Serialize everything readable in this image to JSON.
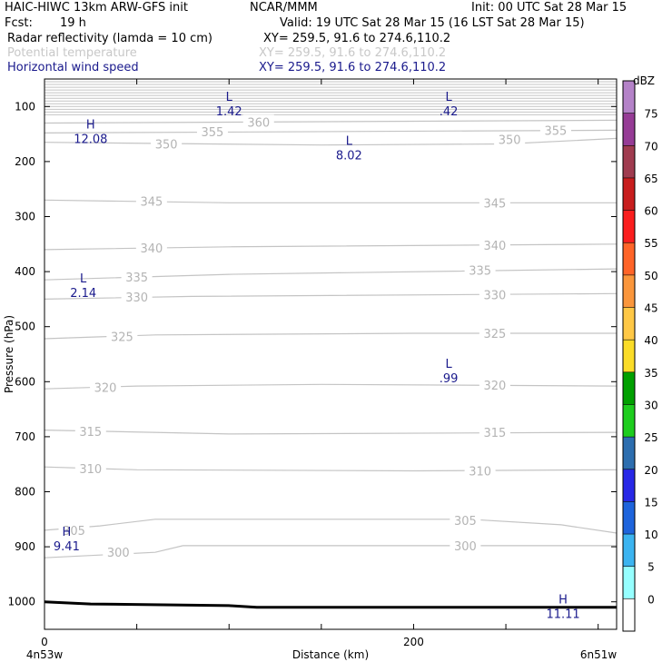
{
  "header": {
    "model": "HAIC-HIWC 13km ARW-GFS init",
    "org": "NCAR/MMM",
    "init": "Init: 00 UTC Sat 28 Mar 15",
    "fcst_label": "Fcst:",
    "fcst_value": "19 h",
    "valid": "Valid: 19 UTC Sat 28 Mar 15 (16 LST Sat 28 Mar 15)",
    "fields": [
      {
        "name": "Radar reflectivity (lamda = 10 cm)",
        "xy": "XY= 259.5, 91.6 to 274.6,110.2"
      },
      {
        "name": "Potential temperature",
        "xy": "XY= 259.5, 91.6 to 274.6,110.2"
      },
      {
        "name": "Horizontal wind speed",
        "xy": "XY= 259.5, 91.6 to 274.6,110.2"
      }
    ]
  },
  "chart_data": {
    "type": "line",
    "xlabel": "Distance (km)",
    "ylabel": "Pressure (hPa)",
    "x_tick_labels": [
      "0",
      "200"
    ],
    "x_ticks": [
      0,
      50,
      100,
      150,
      200,
      250,
      300
    ],
    "x_range": [
      0,
      310
    ],
    "y_ticks": [
      100,
      200,
      300,
      400,
      500,
      600,
      700,
      800,
      900,
      1000
    ],
    "y_range": [
      50,
      1050
    ],
    "left_endpoint": "4n53w",
    "right_endpoint": "6n51w",
    "isentropes": [
      {
        "label": "300",
        "points": [
          [
            0,
            920
          ],
          [
            60,
            910
          ],
          [
            75,
            898
          ],
          [
            310,
            898
          ]
        ]
      },
      {
        "label": "305",
        "points": [
          [
            0,
            870
          ],
          [
            30,
            862
          ],
          [
            60,
            850
          ],
          [
            230,
            850
          ],
          [
            280,
            860
          ],
          [
            310,
            875
          ]
        ]
      },
      {
        "label": "310",
        "points": [
          [
            0,
            755
          ],
          [
            50,
            760
          ],
          [
            200,
            762
          ],
          [
            310,
            760
          ]
        ]
      },
      {
        "label": "315",
        "points": [
          [
            0,
            688
          ],
          [
            100,
            695
          ],
          [
            310,
            692
          ]
        ]
      },
      {
        "label": "320",
        "points": [
          [
            0,
            613
          ],
          [
            50,
            608
          ],
          [
            150,
            605
          ],
          [
            310,
            608
          ]
        ]
      },
      {
        "label": "325",
        "points": [
          [
            0,
            522
          ],
          [
            60,
            515
          ],
          [
            200,
            512
          ],
          [
            310,
            512
          ]
        ]
      },
      {
        "label": "330",
        "points": [
          [
            0,
            450
          ],
          [
            80,
            445
          ],
          [
            310,
            440
          ]
        ]
      },
      {
        "label": "335",
        "points": [
          [
            0,
            415
          ],
          [
            100,
            405
          ],
          [
            310,
            395
          ]
        ]
      },
      {
        "label": "340",
        "points": [
          [
            0,
            360
          ],
          [
            100,
            355
          ],
          [
            310,
            350
          ]
        ]
      },
      {
        "label": "345",
        "points": [
          [
            0,
            270
          ],
          [
            100,
            275
          ],
          [
            310,
            275
          ]
        ]
      },
      {
        "label": "350",
        "points": [
          [
            0,
            165
          ],
          [
            150,
            170
          ],
          [
            250,
            168
          ],
          [
            310,
            158
          ]
        ]
      },
      {
        "label": "355",
        "points": [
          [
            0,
            148
          ],
          [
            310,
            143
          ]
        ]
      },
      {
        "label": "360",
        "points": [
          [
            0,
            130
          ],
          [
            310,
            125
          ]
        ]
      }
    ],
    "isentrope_labels": [
      {
        "text": "300",
        "x": 40,
        "p": 910
      },
      {
        "text": "305",
        "x": 16,
        "p": 870
      },
      {
        "text": "310",
        "x": 25,
        "p": 758
      },
      {
        "text": "315",
        "x": 25,
        "p": 690
      },
      {
        "text": "320",
        "x": 33,
        "p": 610
      },
      {
        "text": "325",
        "x": 42,
        "p": 518
      },
      {
        "text": "330",
        "x": 50,
        "p": 446
      },
      {
        "text": "335",
        "x": 50,
        "p": 410
      },
      {
        "text": "340",
        "x": 58,
        "p": 357
      },
      {
        "text": "345",
        "x": 58,
        "p": 272
      },
      {
        "text": "350",
        "x": 66,
        "p": 168
      },
      {
        "text": "355",
        "x": 91,
        "p": 146
      },
      {
        "text": "360",
        "x": 116,
        "p": 128
      },
      {
        "text": "300",
        "x": 228,
        "p": 898
      },
      {
        "text": "305",
        "x": 228,
        "p": 852
      },
      {
        "text": "310",
        "x": 236,
        "p": 762
      },
      {
        "text": "315",
        "x": 244,
        "p": 692
      },
      {
        "text": "320",
        "x": 244,
        "p": 606
      },
      {
        "text": "325",
        "x": 244,
        "p": 512
      },
      {
        "text": "330",
        "x": 244,
        "p": 442
      },
      {
        "text": "335",
        "x": 236,
        "p": 397
      },
      {
        "text": "340",
        "x": 244,
        "p": 352
      },
      {
        "text": "345",
        "x": 244,
        "p": 275
      },
      {
        "text": "350",
        "x": 252,
        "p": 160
      },
      {
        "text": "355",
        "x": 277,
        "p": 143
      }
    ],
    "wind_extrema": [
      {
        "type": "H",
        "value": "12.08",
        "x": 25,
        "p": 140
      },
      {
        "type": "L",
        "value": "1.42",
        "x": 100,
        "p": 90
      },
      {
        "type": "L",
        "value": ".42",
        "x": 219,
        "p": 90
      },
      {
        "type": "L",
        "value": "8.02",
        "x": 165,
        "p": 170
      },
      {
        "type": "L",
        "value": "2.14",
        "x": 21,
        "p": 420
      },
      {
        "type": "L",
        "value": ".99",
        "x": 219,
        "p": 575
      },
      {
        "type": "H",
        "value": "9.41",
        "x": 12,
        "p": 880
      },
      {
        "type": "H",
        "value": "11.11",
        "x": 281,
        "p": 1003
      }
    ],
    "terrain_surface_hpa": [
      [
        0,
        1000
      ],
      [
        25,
        1004
      ],
      [
        100,
        1007
      ],
      [
        115,
        1010
      ],
      [
        310,
        1010
      ]
    ],
    "colorbar": {
      "unit": "dBZ",
      "levels": [
        "0",
        "5",
        "10",
        "15",
        "20",
        "25",
        "30",
        "35",
        "40",
        "45",
        "50",
        "55",
        "60",
        "65",
        "70",
        "75"
      ],
      "colors": [
        "#ffffff",
        "#96ffff",
        "#3cb4f0",
        "#1e64dc",
        "#2828e6",
        "#2d6eaf",
        "#1ecd1e",
        "#00a000",
        "#fadc28",
        "#ffc846",
        "#fa963c",
        "#ff6428",
        "#fa1e1e",
        "#c81e1e",
        "#a03c50",
        "#963c96",
        "#b482c8"
      ]
    }
  }
}
